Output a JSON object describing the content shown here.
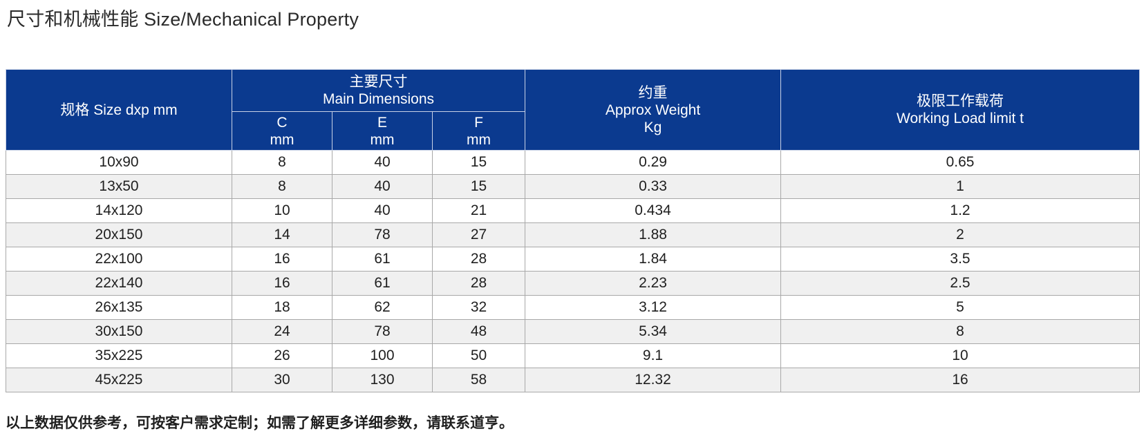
{
  "title": "尺寸和机械性能 Size/Mechanical Property",
  "table": {
    "headers": {
      "size": "规格 Size dxp mm",
      "main_dim_cn": "主要尺寸",
      "main_dim_en": "Main Dimensions",
      "c": "C",
      "e": "E",
      "f": "F",
      "mm": "mm",
      "weight_cn": "约重",
      "weight_en": "Approx Weight",
      "weight_unit": "Kg",
      "wll_cn": "极限工作载荷",
      "wll_en": "Working Load limit t"
    },
    "rows": [
      {
        "size": "10x90",
        "c": "8",
        "e": "40",
        "f": "15",
        "weight": "0.29",
        "wll": "0.65"
      },
      {
        "size": "13x50",
        "c": "8",
        "e": "40",
        "f": "15",
        "weight": "0.33",
        "wll": "1"
      },
      {
        "size": "14x120",
        "c": "10",
        "e": "40",
        "f": "21",
        "weight": "0.434",
        "wll": "1.2"
      },
      {
        "size": "20x150",
        "c": "14",
        "e": "78",
        "f": "27",
        "weight": "1.88",
        "wll": "2"
      },
      {
        "size": "22x100",
        "c": "16",
        "e": "61",
        "f": "28",
        "weight": "1.84",
        "wll": "3.5"
      },
      {
        "size": "22x140",
        "c": "16",
        "e": "61",
        "f": "28",
        "weight": "2.23",
        "wll": "2.5"
      },
      {
        "size": "26x135",
        "c": "18",
        "e": "62",
        "f": "32",
        "weight": "3.12",
        "wll": "5"
      },
      {
        "size": "30x150",
        "c": "24",
        "e": "78",
        "f": "48",
        "weight": "5.34",
        "wll": "8"
      },
      {
        "size": "35x225",
        "c": "26",
        "e": "100",
        "f": "50",
        "weight": "9.1",
        "wll": "10"
      },
      {
        "size": "45x225",
        "c": "30",
        "e": "130",
        "f": "58",
        "weight": "12.32",
        "wll": "16"
      }
    ]
  },
  "footer_note": "以上数据仅供参考，可按客户需求定制；如需了解更多详细参数，请联系道亨。",
  "colors": {
    "header_bg": "#0b3a8f",
    "row_alt_bg": "#f0f0f0"
  }
}
